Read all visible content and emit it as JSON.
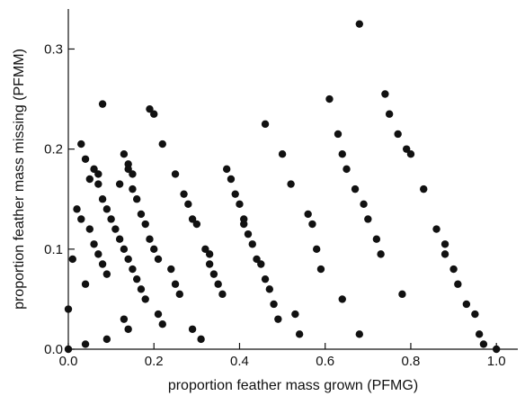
{
  "chart_data": {
    "type": "scatter",
    "xlabel": "proportion feather mass grown (PFMG)",
    "ylabel": "proportion feather mass missing (PFMM)",
    "xlim": [
      0.0,
      1.05
    ],
    "ylim": [
      0.0,
      0.34
    ],
    "x_ticks": [
      "0.0",
      "0.2",
      "0.4",
      "0.6",
      "0.8",
      "1.0"
    ],
    "y_ticks": [
      "0.0",
      "0.1",
      "0.2",
      "0.3"
    ],
    "grid": false,
    "marker_color": "#111111",
    "points": [
      [
        0.0,
        0.0
      ],
      [
        0.0,
        0.04
      ],
      [
        0.01,
        0.09
      ],
      [
        0.02,
        0.14
      ],
      [
        0.03,
        0.205
      ],
      [
        0.03,
        0.13
      ],
      [
        0.04,
        0.065
      ],
      [
        0.04,
        0.005
      ],
      [
        0.04,
        0.19
      ],
      [
        0.05,
        0.17
      ],
      [
        0.05,
        0.12
      ],
      [
        0.06,
        0.18
      ],
      [
        0.06,
        0.105
      ],
      [
        0.07,
        0.165
      ],
      [
        0.07,
        0.175
      ],
      [
        0.07,
        0.095
      ],
      [
        0.08,
        0.15
      ],
      [
        0.08,
        0.085
      ],
      [
        0.08,
        0.245
      ],
      [
        0.09,
        0.075
      ],
      [
        0.09,
        0.14
      ],
      [
        0.09,
        0.01
      ],
      [
        0.1,
        0.13
      ],
      [
        0.11,
        0.12
      ],
      [
        0.12,
        0.11
      ],
      [
        0.12,
        0.165
      ],
      [
        0.13,
        0.1
      ],
      [
        0.13,
        0.195
      ],
      [
        0.13,
        0.03
      ],
      [
        0.14,
        0.09
      ],
      [
        0.14,
        0.185
      ],
      [
        0.14,
        0.18
      ],
      [
        0.14,
        0.02
      ],
      [
        0.15,
        0.175
      ],
      [
        0.15,
        0.16
      ],
      [
        0.15,
        0.08
      ],
      [
        0.16,
        0.07
      ],
      [
        0.16,
        0.15
      ],
      [
        0.17,
        0.135
      ],
      [
        0.17,
        0.06
      ],
      [
        0.18,
        0.125
      ],
      [
        0.18,
        0.05
      ],
      [
        0.19,
        0.24
      ],
      [
        0.19,
        0.11
      ],
      [
        0.2,
        0.235
      ],
      [
        0.2,
        0.1
      ],
      [
        0.21,
        0.09
      ],
      [
        0.21,
        0.035
      ],
      [
        0.22,
        0.025
      ],
      [
        0.22,
        0.205
      ],
      [
        0.24,
        0.08
      ],
      [
        0.25,
        0.175
      ],
      [
        0.25,
        0.065
      ],
      [
        0.26,
        0.055
      ],
      [
        0.27,
        0.155
      ],
      [
        0.28,
        0.145
      ],
      [
        0.29,
        0.13
      ],
      [
        0.29,
        0.02
      ],
      [
        0.3,
        0.125
      ],
      [
        0.31,
        0.01
      ],
      [
        0.32,
        0.1
      ],
      [
        0.33,
        0.095
      ],
      [
        0.33,
        0.085
      ],
      [
        0.34,
        0.075
      ],
      [
        0.35,
        0.065
      ],
      [
        0.36,
        0.055
      ],
      [
        0.37,
        0.18
      ],
      [
        0.38,
        0.17
      ],
      [
        0.39,
        0.155
      ],
      [
        0.4,
        0.145
      ],
      [
        0.41,
        0.13
      ],
      [
        0.41,
        0.125
      ],
      [
        0.42,
        0.115
      ],
      [
        0.43,
        0.105
      ],
      [
        0.44,
        0.09
      ],
      [
        0.45,
        0.085
      ],
      [
        0.46,
        0.225
      ],
      [
        0.46,
        0.07
      ],
      [
        0.47,
        0.06
      ],
      [
        0.48,
        0.045
      ],
      [
        0.49,
        0.03
      ],
      [
        0.5,
        0.195
      ],
      [
        0.52,
        0.165
      ],
      [
        0.53,
        0.035
      ],
      [
        0.54,
        0.015
      ],
      [
        0.56,
        0.135
      ],
      [
        0.57,
        0.125
      ],
      [
        0.58,
        0.1
      ],
      [
        0.59,
        0.08
      ],
      [
        0.61,
        0.25
      ],
      [
        0.63,
        0.215
      ],
      [
        0.64,
        0.195
      ],
      [
        0.64,
        0.05
      ],
      [
        0.65,
        0.18
      ],
      [
        0.67,
        0.16
      ],
      [
        0.68,
        0.015
      ],
      [
        0.68,
        0.325
      ],
      [
        0.69,
        0.145
      ],
      [
        0.7,
        0.13
      ],
      [
        0.72,
        0.11
      ],
      [
        0.73,
        0.095
      ],
      [
        0.74,
        0.255
      ],
      [
        0.75,
        0.235
      ],
      [
        0.77,
        0.215
      ],
      [
        0.78,
        0.055
      ],
      [
        0.79,
        0.2
      ],
      [
        0.8,
        0.195
      ],
      [
        0.83,
        0.16
      ],
      [
        0.86,
        0.12
      ],
      [
        0.88,
        0.105
      ],
      [
        0.88,
        0.095
      ],
      [
        0.9,
        0.08
      ],
      [
        0.91,
        0.065
      ],
      [
        0.93,
        0.045
      ],
      [
        0.95,
        0.035
      ],
      [
        0.96,
        0.015
      ],
      [
        0.97,
        0.005
      ],
      [
        1.0,
        0.0
      ]
    ]
  }
}
